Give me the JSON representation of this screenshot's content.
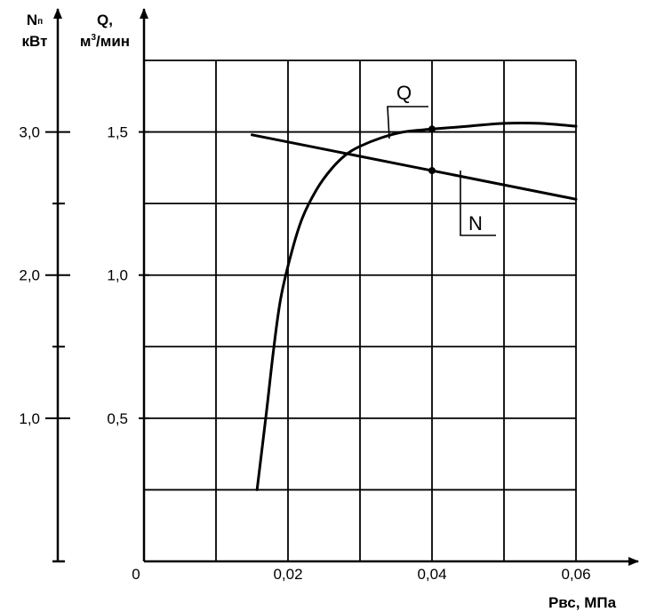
{
  "chart_data": {
    "type": "line",
    "x": {
      "label": "Рвс, МПа",
      "origin_label": "0",
      "ticks": [
        0.02,
        0.04,
        0.06
      ],
      "tick_labels": [
        "0,02",
        "0,04",
        "0,06"
      ],
      "range": [
        0,
        0.06
      ],
      "grid_step": 0.01
    },
    "y_left": {
      "label_line1": "Nп",
      "label_line1_main": "N",
      "label_line1_sub": "п",
      "label_line2": "кВт",
      "ticks": [
        1.0,
        2.0,
        3.0
      ],
      "tick_labels": [
        "1,0",
        "2,0",
        "3,0"
      ],
      "minor_ticks": [
        1.5,
        2.5
      ]
    },
    "y_right": {
      "label_line1": "Q,",
      "label_line2_prefix": "м",
      "label_line2_sup": "3",
      "label_line2_suffix": "/мин",
      "ticks": [
        0.5,
        1.0,
        1.5
      ],
      "tick_labels": [
        "0,5",
        "1,0",
        "1,5"
      ],
      "range": [
        0,
        1.75
      ],
      "grid_step": 0.25
    },
    "grid": true,
    "series": [
      {
        "name": "Q",
        "axis": "right",
        "x": [
          0.0157,
          0.017,
          0.018,
          0.019,
          0.0205,
          0.022,
          0.024,
          0.026,
          0.028,
          0.03,
          0.033,
          0.036,
          0.04,
          0.045,
          0.05,
          0.055,
          0.06
        ],
        "y": [
          0.25,
          0.52,
          0.74,
          0.92,
          1.08,
          1.2,
          1.3,
          1.37,
          1.42,
          1.45,
          1.48,
          1.5,
          1.51,
          1.52,
          1.53,
          1.53,
          1.52
        ]
      },
      {
        "name": "N",
        "axis": "left",
        "x": [
          0.015,
          0.06
        ],
        "y": [
          2.98,
          2.53
        ]
      }
    ],
    "markers": [
      {
        "series": "Q",
        "x": 0.04,
        "y": 1.51
      },
      {
        "series": "N",
        "x": 0.04,
        "y": 2.73
      }
    ]
  }
}
